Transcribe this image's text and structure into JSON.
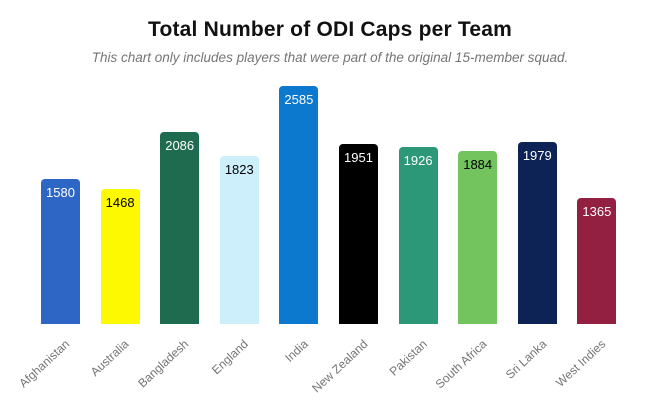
{
  "title": "Total Number of ODI Caps per Team",
  "subtitle": "This chart only includes players that were part of the original 15-member squad.",
  "chart_data": {
    "type": "bar",
    "title": "Total Number of ODI Caps per Team",
    "subtitle": "This chart only includes players that were part of the original 15-member squad.",
    "categories": [
      "Afghanistan",
      "Australia",
      "Bangladesh",
      "England",
      "India",
      "New Zealand",
      "Pakistan",
      "South Africa",
      "Sri Lanka",
      "West Indies"
    ],
    "values": [
      1580,
      1468,
      2086,
      1823,
      2585,
      1951,
      1926,
      1884,
      1979,
      1365
    ],
    "bar_colors": [
      "#2E66C6",
      "#FDF900",
      "#1E6B50",
      "#CDEFFC",
      "#0C79CF",
      "#000000",
      "#2D9877",
      "#73C45F",
      "#0E2355",
      "#932040"
    ],
    "value_label_colors": [
      "#ffffff",
      "#000000",
      "#ffffff",
      "#000000",
      "#ffffff",
      "#ffffff",
      "#ffffff",
      "#000000",
      "#ffffff",
      "#ffffff"
    ],
    "value_label_position": "inside-top",
    "xlabel": "",
    "ylabel": "",
    "ylim": [
      0,
      2585
    ],
    "grid": false,
    "legend": "none",
    "x_tick_rotation": -43,
    "x_tick_color": "#757575",
    "background_color": "#ffffff"
  }
}
